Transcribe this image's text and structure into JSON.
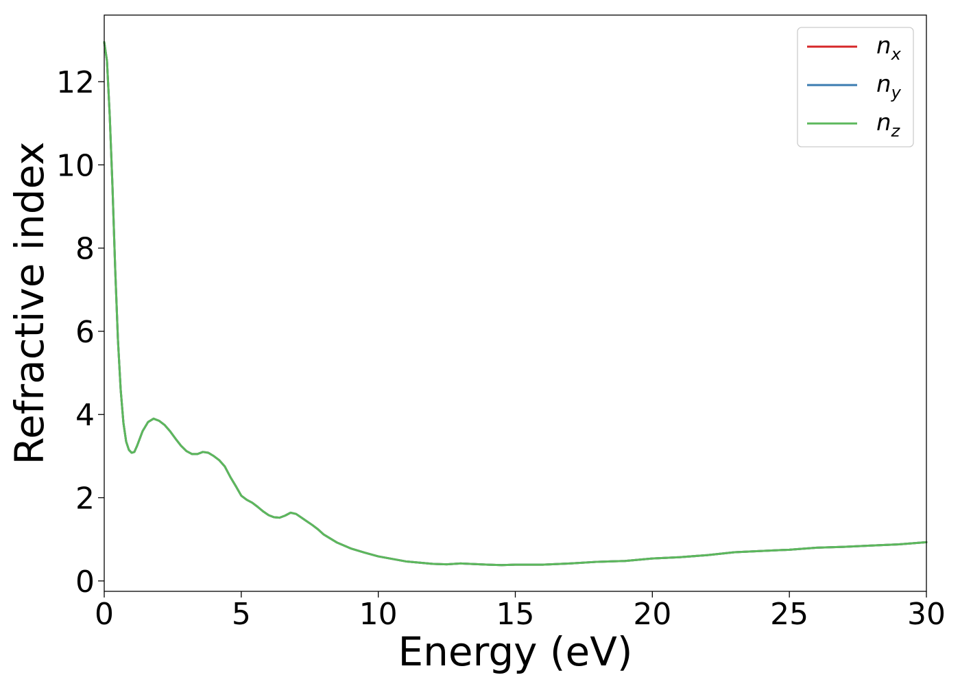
{
  "chart_data": {
    "type": "line",
    "xlabel": "Energy (eV)",
    "ylabel": "Refractive index",
    "xlim": [
      0,
      30
    ],
    "ylim": [
      -0.25,
      13.6
    ],
    "xticks": [
      "0",
      "5",
      "10",
      "15",
      "20",
      "25",
      "30"
    ],
    "yticks": [
      "0",
      "2",
      "4",
      "6",
      "8",
      "10",
      "12"
    ],
    "grid": false,
    "legend_position": "top-right",
    "series": [
      {
        "name": "n",
        "subscript": "x",
        "color": "#d62728"
      },
      {
        "name": "n",
        "subscript": "y",
        "color": "#3a7bb0"
      },
      {
        "name": "n",
        "subscript": "z",
        "color": "#5cb85c"
      }
    ],
    "x": [
      0,
      0.1,
      0.2,
      0.3,
      0.4,
      0.5,
      0.6,
      0.7,
      0.8,
      0.9,
      1.0,
      1.1,
      1.2,
      1.4,
      1.6,
      1.8,
      2.0,
      2.2,
      2.4,
      2.6,
      2.8,
      3.0,
      3.2,
      3.4,
      3.6,
      3.8,
      4.0,
      4.2,
      4.4,
      4.6,
      4.8,
      5.0,
      5.2,
      5.4,
      5.6,
      5.8,
      6.0,
      6.2,
      6.4,
      6.6,
      6.8,
      7.0,
      7.2,
      7.4,
      7.6,
      7.8,
      8.0,
      8.5,
      9.0,
      9.5,
      10.0,
      11.0,
      12.0,
      12.5,
      13.0,
      14.0,
      14.5,
      15.0,
      16.0,
      17.0,
      18.0,
      19.0,
      20.0,
      21.0,
      22.0,
      23.0,
      24.0,
      25.0,
      26.0,
      27.0,
      28.0,
      29.0,
      30.0
    ],
    "values": [
      12.95,
      12.5,
      11.2,
      9.5,
      7.5,
      5.8,
      4.6,
      3.8,
      3.35,
      3.15,
      3.08,
      3.1,
      3.25,
      3.6,
      3.82,
      3.9,
      3.85,
      3.75,
      3.6,
      3.42,
      3.25,
      3.12,
      3.05,
      3.05,
      3.1,
      3.08,
      3.0,
      2.9,
      2.75,
      2.5,
      2.28,
      2.05,
      1.95,
      1.88,
      1.78,
      1.67,
      1.58,
      1.53,
      1.52,
      1.57,
      1.64,
      1.61,
      1.52,
      1.43,
      1.34,
      1.24,
      1.12,
      0.92,
      0.78,
      0.68,
      0.59,
      0.47,
      0.41,
      0.4,
      0.42,
      0.39,
      0.38,
      0.39,
      0.39,
      0.42,
      0.46,
      0.48,
      0.54,
      0.57,
      0.62,
      0.69,
      0.72,
      0.75,
      0.8,
      0.82,
      0.85,
      0.88,
      0.93
    ]
  }
}
